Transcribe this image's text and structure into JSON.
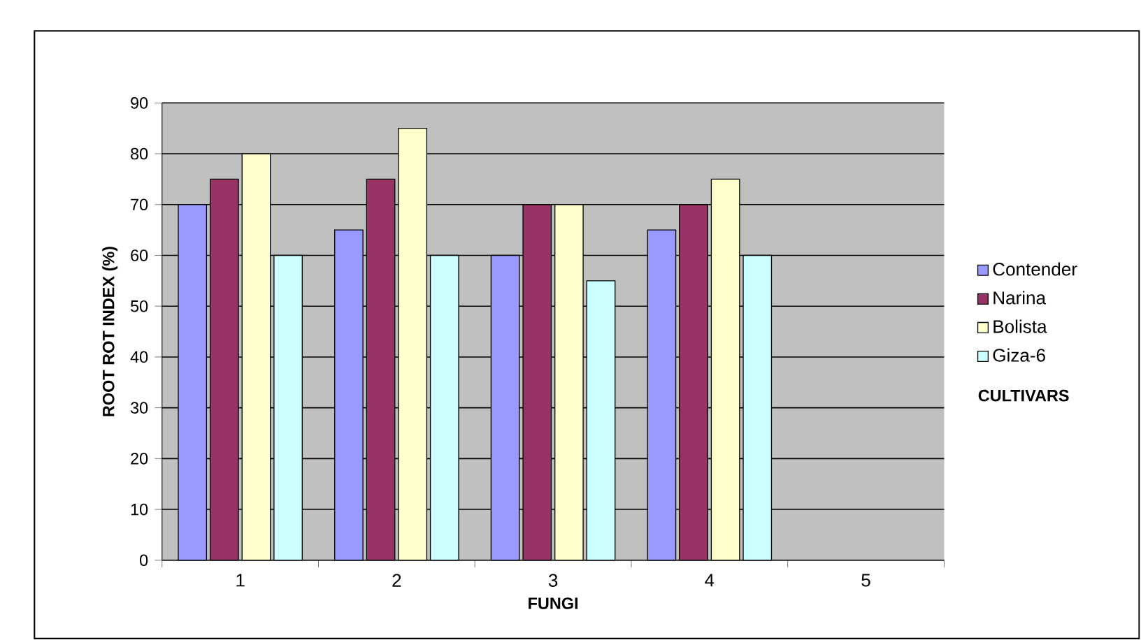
{
  "chart_data": {
    "type": "bar",
    "xlabel": "FUNGI",
    "ylabel": "ROOT ROT INDEX (%)",
    "legend_title": "CULTIVARS",
    "categories": [
      "1",
      "2",
      "3",
      "4",
      "5"
    ],
    "series": [
      {
        "name": "Contender",
        "color": "#9999ff",
        "values": [
          70,
          65,
          60,
          65,
          null
        ]
      },
      {
        "name": "Narina",
        "color": "#993366",
        "values": [
          75,
          75,
          70,
          70,
          null
        ]
      },
      {
        "name": "Bolista",
        "color": "#ffffcc",
        "values": [
          80,
          85,
          70,
          75,
          null
        ]
      },
      {
        "name": "Giza-6",
        "color": "#ccffff",
        "values": [
          60,
          60,
          55,
          60,
          null
        ]
      }
    ],
    "ylim": [
      0,
      90
    ],
    "yticks": [
      0,
      10,
      20,
      30,
      40,
      50,
      60,
      70,
      80,
      90
    ],
    "grid": "y",
    "legend": "right"
  }
}
